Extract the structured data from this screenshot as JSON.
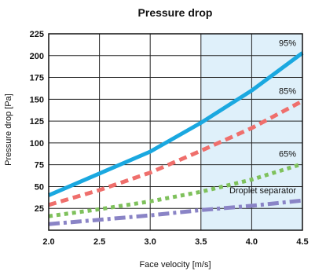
{
  "chart_data": {
    "type": "line",
    "title": "Pressure drop",
    "xlabel": "Face velocity [m/s]",
    "ylabel": "Pressure drop  [Pa]",
    "xlim": [
      2.0,
      4.5
    ],
    "ylim": [
      0,
      225
    ],
    "x_ticks": [
      "2.0",
      "2.5",
      "3.0",
      "3.5",
      "4.0",
      "4.5"
    ],
    "y_ticks": [
      "25",
      "50",
      "75",
      "100",
      "125",
      "150",
      "175",
      "200",
      "225"
    ],
    "grid": true,
    "highlight_region": {
      "x_from": 3.5,
      "x_to": 4.5,
      "color": "#dff0fa"
    },
    "series": [
      {
        "name": "95%",
        "color": "#1aa8e0",
        "style": "solid",
        "x": [
          2.0,
          2.5,
          3.0,
          3.5,
          4.0,
          4.5
        ],
        "y": [
          40,
          65,
          90,
          123,
          160,
          203
        ]
      },
      {
        "name": "85%",
        "color": "#ef6f6c",
        "style": "dashed",
        "x": [
          2.0,
          2.5,
          3.0,
          3.5,
          4.0,
          4.5
        ],
        "y": [
          29,
          46,
          66,
          91,
          117,
          148
        ]
      },
      {
        "name": "65%",
        "color": "#7fc15c",
        "style": "dotted",
        "x": [
          2.0,
          2.5,
          3.0,
          3.5,
          4.0,
          4.5
        ],
        "y": [
          16,
          24,
          33,
          44,
          58,
          76
        ]
      },
      {
        "name": "Droplet separator",
        "color": "#8a84c6",
        "style": "dashdot",
        "x": [
          2.0,
          2.5,
          3.0,
          3.5,
          4.0,
          4.5
        ],
        "y": [
          7,
          12,
          17,
          23,
          28,
          34
        ]
      }
    ]
  }
}
